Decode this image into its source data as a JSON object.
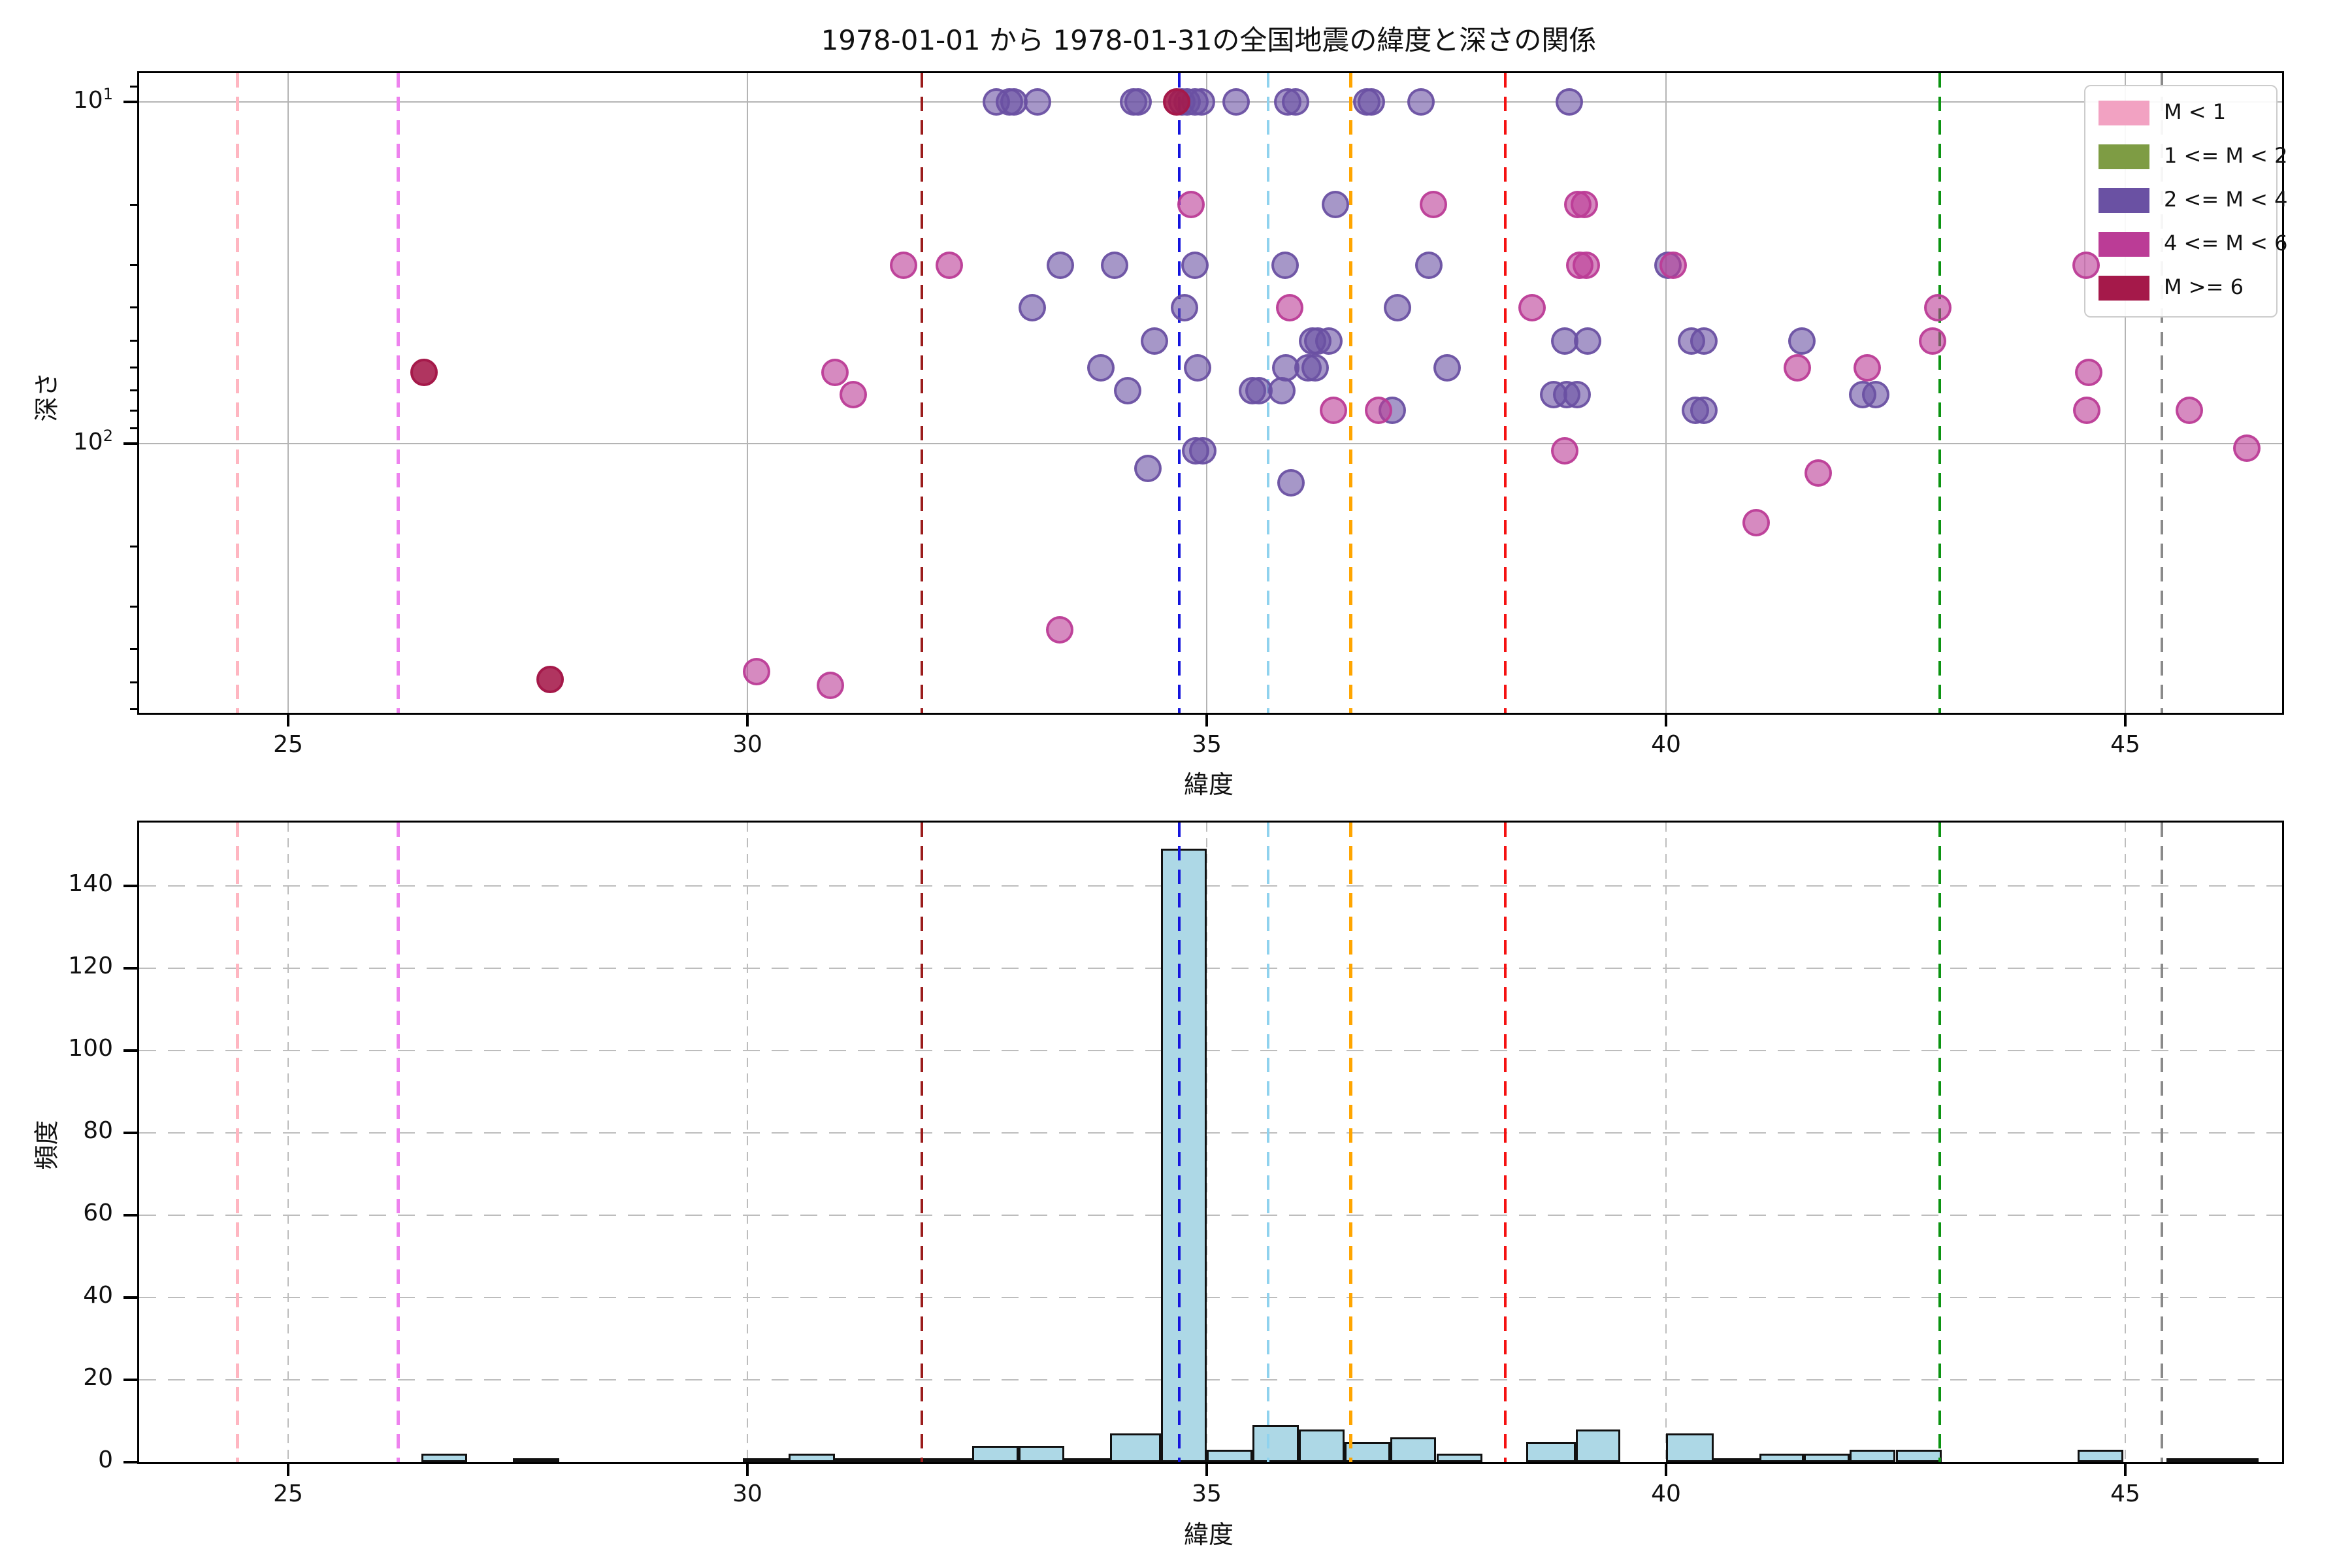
{
  "title": "1978-01-01 から 1978-01-31の全国地震の緯度と深さの関係",
  "axis": {
    "xlabel_top": "緯度",
    "xlabel_bottom": "緯度",
    "ylabel_top": "深さ",
    "ylabel_bottom": "頻度"
  },
  "x_axis": {
    "ticks": [
      25,
      30,
      35,
      40,
      45
    ],
    "range": [
      23.38,
      46.71
    ]
  },
  "y_axis_top": {
    "scale": "log",
    "inverted": true,
    "range": [
      8.2,
      613
    ],
    "major_ticks": [
      10,
      100
    ],
    "major_tick_labels": [
      {
        "base": "10",
        "exp": "1"
      },
      {
        "base": "10",
        "exp": "2"
      }
    ],
    "minor_ticks": [
      9,
      20,
      30,
      40,
      50,
      60,
      70,
      80,
      90,
      200,
      300,
      400,
      500,
      600
    ]
  },
  "y_axis_bottom": {
    "ticks": [
      0,
      20,
      40,
      60,
      80,
      100,
      120,
      140
    ],
    "range": [
      0,
      155
    ]
  },
  "colors": {
    "m_lt1": "#f2a2c2",
    "m_1_2": "#7e9c44",
    "m_2_4": "#6a51a3",
    "m_4_6": "#bb3c96",
    "m_ge6": "#a5194a",
    "bar_fill": "#add8e6",
    "bar_edge": "#111111",
    "grid_top": "#b4b4b4",
    "grid_bottom": "#bdbdbd"
  },
  "legend": [
    {
      "label": "M < 1",
      "class": "m_lt1"
    },
    {
      "label": "1 <= M < 2",
      "class": "m_1_2"
    },
    {
      "label": "2 <= M < 4",
      "class": "m_2_4"
    },
    {
      "label": "4 <= M < 6",
      "class": "m_4_6"
    },
    {
      "label": "M >= 6",
      "class": "m_ge6"
    }
  ],
  "reference_lines": [
    {
      "lat": 24.45,
      "color": "#ffb6c1"
    },
    {
      "lat": 26.2,
      "color": "#ee82ee"
    },
    {
      "lat": 31.9,
      "color": "#9b1c1c"
    },
    {
      "lat": 34.7,
      "color": "#1414dd"
    },
    {
      "lat": 35.67,
      "color": "#8fd2ee"
    },
    {
      "lat": 36.57,
      "color": "#ffa500"
    },
    {
      "lat": 38.25,
      "color": "#f51111"
    },
    {
      "lat": 42.98,
      "color": "#0c9412"
    },
    {
      "lat": 45.4,
      "color": "#8a8a8a"
    }
  ],
  "chart_data": [
    {
      "type": "scatter",
      "title": "1978-01-01 から 1978-01-31の全国地震の緯度と深さの関係",
      "xlabel": "緯度",
      "ylabel": "深さ",
      "x_range": [
        23.38,
        46.71
      ],
      "y_scale": "log-inverted",
      "y_range": [
        8.2,
        613
      ],
      "legend_position": "upper right",
      "series": [
        {
          "name": "2 <= M < 4",
          "class": "m_2_4",
          "points": [
            [
              32.71,
              10
            ],
            [
              32.85,
              10
            ],
            [
              32.9,
              10
            ],
            [
              33.16,
              10
            ],
            [
              34.2,
              10
            ],
            [
              34.25,
              10
            ],
            [
              34.73,
              10
            ],
            [
              34.79,
              10
            ],
            [
              34.87,
              10
            ],
            [
              34.94,
              10
            ],
            [
              35.32,
              10
            ],
            [
              35.88,
              10
            ],
            [
              35.97,
              10
            ],
            [
              36.74,
              10
            ],
            [
              36.79,
              10
            ],
            [
              37.33,
              10
            ],
            [
              38.95,
              10
            ],
            [
              36.4,
              20
            ],
            [
              33.41,
              30
            ],
            [
              34.0,
              30
            ],
            [
              34.87,
              30
            ],
            [
              35.85,
              30
            ],
            [
              37.42,
              30
            ],
            [
              40.02,
              30
            ],
            [
              33.1,
              40
            ],
            [
              34.76,
              40
            ],
            [
              37.08,
              40
            ],
            [
              34.43,
              50
            ],
            [
              36.15,
              50
            ],
            [
              36.21,
              50
            ],
            [
              36.33,
              50
            ],
            [
              38.9,
              50
            ],
            [
              39.15,
              50
            ],
            [
              40.28,
              50
            ],
            [
              40.41,
              50
            ],
            [
              41.48,
              50
            ],
            [
              33.85,
              60
            ],
            [
              34.9,
              60
            ],
            [
              35.86,
              60
            ],
            [
              36.1,
              60
            ],
            [
              36.18,
              60
            ],
            [
              37.62,
              60
            ],
            [
              34.14,
              70
            ],
            [
              35.5,
              70
            ],
            [
              35.57,
              70
            ],
            [
              35.82,
              70
            ],
            [
              38.78,
              72
            ],
            [
              38.92,
              72
            ],
            [
              39.03,
              72
            ],
            [
              42.14,
              72
            ],
            [
              42.28,
              72
            ],
            [
              37.02,
              80
            ],
            [
              40.32,
              80
            ],
            [
              40.41,
              80
            ],
            [
              34.88,
              105
            ],
            [
              34.96,
              105
            ],
            [
              34.36,
              118
            ],
            [
              35.92,
              130
            ]
          ]
        },
        {
          "name": "4 <= M < 6",
          "class": "m_4_6",
          "points": [
            [
              34.83,
              20
            ],
            [
              37.47,
              20
            ],
            [
              39.04,
              20
            ],
            [
              39.11,
              20
            ],
            [
              31.7,
              30
            ],
            [
              32.2,
              30
            ],
            [
              39.06,
              30
            ],
            [
              39.13,
              30
            ],
            [
              40.08,
              30
            ],
            [
              44.57,
              30
            ],
            [
              35.9,
              40
            ],
            [
              38.54,
              40
            ],
            [
              42.96,
              40
            ],
            [
              42.9,
              50
            ],
            [
              30.95,
              62
            ],
            [
              41.43,
              60
            ],
            [
              42.19,
              60
            ],
            [
              44.6,
              62
            ],
            [
              31.15,
              72
            ],
            [
              36.38,
              80
            ],
            [
              36.87,
              80
            ],
            [
              44.58,
              80
            ],
            [
              45.7,
              80
            ],
            [
              38.9,
              105
            ],
            [
              46.32,
              103
            ],
            [
              41.66,
              122
            ],
            [
              40.98,
              170
            ],
            [
              33.4,
              350
            ],
            [
              30.1,
              465
            ],
            [
              30.9,
              510
            ]
          ]
        },
        {
          "name": "M >= 6",
          "class": "m_ge6",
          "points": [
            [
              34.67,
              10
            ],
            [
              26.48,
              62
            ],
            [
              27.85,
              490
            ]
          ]
        },
        {
          "name": "M < 1",
          "class": "m_lt1",
          "points": []
        },
        {
          "name": "1 <= M < 2",
          "class": "m_1_2",
          "points": []
        }
      ]
    },
    {
      "type": "bar",
      "xlabel": "緯度",
      "ylabel": "頻度",
      "x_range": [
        23.38,
        46.71
      ],
      "ylim": [
        0,
        155
      ],
      "grid": "dashed",
      "bars": [
        [
          26.45,
          26.95,
          2
        ],
        [
          27.45,
          27.95,
          1
        ],
        [
          29.95,
          30.45,
          1
        ],
        [
          30.45,
          30.95,
          2
        ],
        [
          30.95,
          31.45,
          1
        ],
        [
          31.45,
          31.92,
          1
        ],
        [
          31.92,
          32.45,
          1
        ],
        [
          32.45,
          32.95,
          4
        ],
        [
          32.95,
          33.45,
          4
        ],
        [
          33.45,
          33.95,
          1
        ],
        [
          33.95,
          34.5,
          7
        ],
        [
          34.5,
          35.0,
          149
        ],
        [
          35.0,
          35.5,
          3
        ],
        [
          35.5,
          36.0,
          9
        ],
        [
          36.0,
          36.5,
          8
        ],
        [
          36.5,
          37.0,
          5
        ],
        [
          37.0,
          37.5,
          6
        ],
        [
          37.5,
          38.0,
          2
        ],
        [
          38.48,
          39.02,
          5
        ],
        [
          39.02,
          39.5,
          8
        ],
        [
          40.0,
          40.52,
          7
        ],
        [
          40.52,
          41.02,
          1
        ],
        [
          41.02,
          41.5,
          2
        ],
        [
          41.5,
          42.0,
          2
        ],
        [
          42.0,
          42.5,
          3
        ],
        [
          42.5,
          43.0,
          3
        ],
        [
          44.48,
          44.98,
          3
        ],
        [
          45.45,
          45.95,
          1
        ],
        [
          45.95,
          46.45,
          1
        ]
      ]
    }
  ]
}
